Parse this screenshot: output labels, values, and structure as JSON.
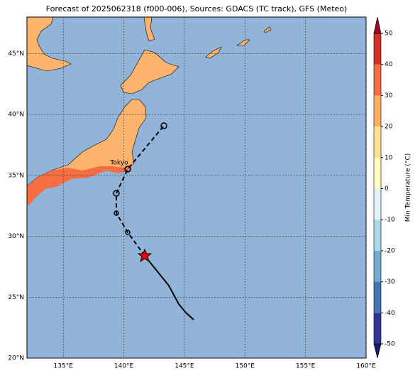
{
  "title": "Forecast of 2025062318 (f000-006), Sources: GDACS (TC track), GFS (Meteo)",
  "map": {
    "lon_range": [
      132,
      160
    ],
    "lat_range": [
      20,
      48
    ],
    "lon_ticks": [
      {
        "value": 135,
        "label": "135°E"
      },
      {
        "value": 140,
        "label": "140°E"
      },
      {
        "value": 145,
        "label": "145°E"
      },
      {
        "value": 150,
        "label": "150°E"
      },
      {
        "value": 155,
        "label": "155°E"
      },
      {
        "value": 160,
        "label": "160°E"
      }
    ],
    "lat_ticks": [
      {
        "value": 20,
        "label": "20°N"
      },
      {
        "value": 25,
        "label": "25°N"
      },
      {
        "value": 30,
        "label": "30°N"
      },
      {
        "value": 35,
        "label": "35°N"
      },
      {
        "value": 40,
        "label": "40°N"
      },
      {
        "value": 45,
        "label": "45°N"
      }
    ],
    "city": "Tokyo"
  },
  "colorbar": {
    "label": "Min Temperature (°C)",
    "range": [
      -50,
      50
    ],
    "ticks": [
      -50,
      -40,
      -30,
      -20,
      -10,
      0,
      10,
      20,
      30,
      40,
      50
    ],
    "colors": [
      "#313695",
      "#4575b4",
      "#74add1",
      "#abd9e9",
      "#e0f3f8",
      "#ffffbf",
      "#fee090",
      "#fdae61",
      "#f46d43",
      "#d73027"
    ],
    "under_color": "#1a1a6e",
    "over_color": "#a50026"
  }
}
